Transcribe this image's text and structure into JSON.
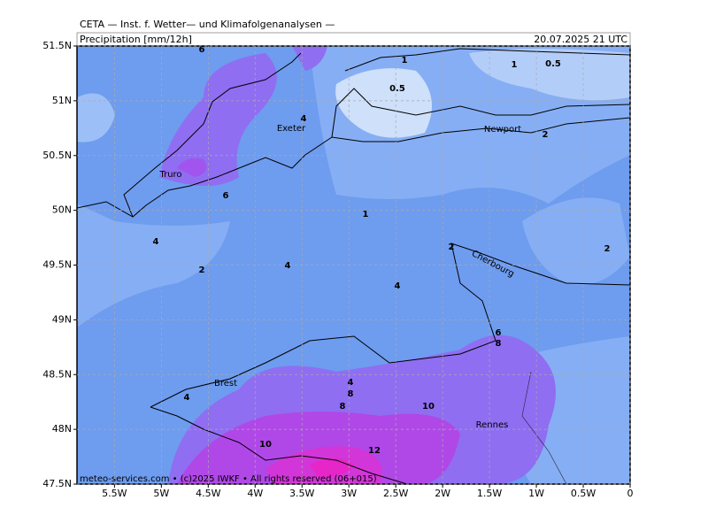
{
  "header": {
    "source": "CETA — Inst. f. Wetter— und Klimafolgenanalysen —",
    "variable": "Precipitation [mm/12h]",
    "valid_time": "20.07.2025 21 UTC"
  },
  "map": {
    "lon_range": [
      -5.9,
      0
    ],
    "lat_range": [
      47.5,
      51.5
    ],
    "lon_ticks": [
      {
        "value": -5.5,
        "label": "5.5W"
      },
      {
        "value": -5,
        "label": "5W"
      },
      {
        "value": -4.5,
        "label": "4.5W"
      },
      {
        "value": -4,
        "label": "4W"
      },
      {
        "value": -3.5,
        "label": "3.5W"
      },
      {
        "value": -3,
        "label": "3W"
      },
      {
        "value": -2.5,
        "label": "2.5W"
      },
      {
        "value": -2,
        "label": "2W"
      },
      {
        "value": -1.5,
        "label": "1.5W"
      },
      {
        "value": -1,
        "label": "1W"
      },
      {
        "value": -0.5,
        "label": "0.5W"
      },
      0
    ],
    "lat_ticks": [
      {
        "value": 51.5,
        "label": "51.5N"
      },
      {
        "value": 51,
        "label": "51N"
      },
      {
        "value": 50.5,
        "label": "50.5N"
      },
      {
        "value": 50,
        "label": "50N"
      },
      {
        "value": 49.5,
        "label": "49.5N"
      },
      {
        "value": 49,
        "label": "49N"
      },
      {
        "value": 48.5,
        "label": "48.5N"
      },
      {
        "value": 48,
        "label": "48N"
      },
      {
        "value": 47.5,
        "label": "47.5N"
      }
    ],
    "contour_labels": [
      "6",
      "1",
      "1",
      "0.5",
      "0.5",
      "4",
      "2",
      "6",
      "1",
      "4",
      "2",
      "4",
      "2",
      "2",
      "4",
      "6",
      "8",
      "4",
      "8",
      "4",
      "8",
      "10",
      "10",
      "12"
    ],
    "places": [
      "Exeter",
      "Truro",
      "Newport",
      "Cherbourg",
      "Brest",
      "Rennes"
    ],
    "footer": "meteo-services.com • (c)2025 IWKF • All rights reserved (06+015)"
  }
}
